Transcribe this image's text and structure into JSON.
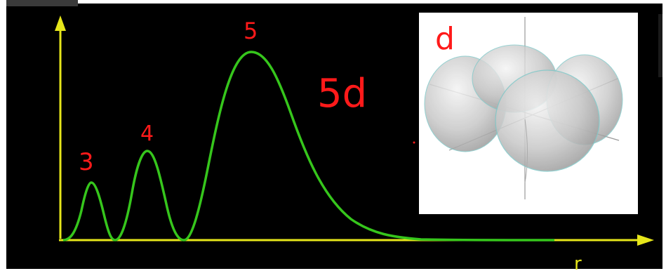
{
  "diagram": {
    "x_axis_label": "r",
    "peak_labels": [
      "3",
      "4",
      "5"
    ],
    "orbital_label": "5d",
    "inset_label": "d",
    "colors": {
      "background": "#000000",
      "axis": "#e6e61a",
      "curve": "#36c61c",
      "annotation": "#ff1a1a",
      "lobe_fill": "#c9c9c9",
      "lobe_edge": "#7fc8c8"
    },
    "icons": {
      "inset": "d-orbital-lobes-icon"
    }
  }
}
